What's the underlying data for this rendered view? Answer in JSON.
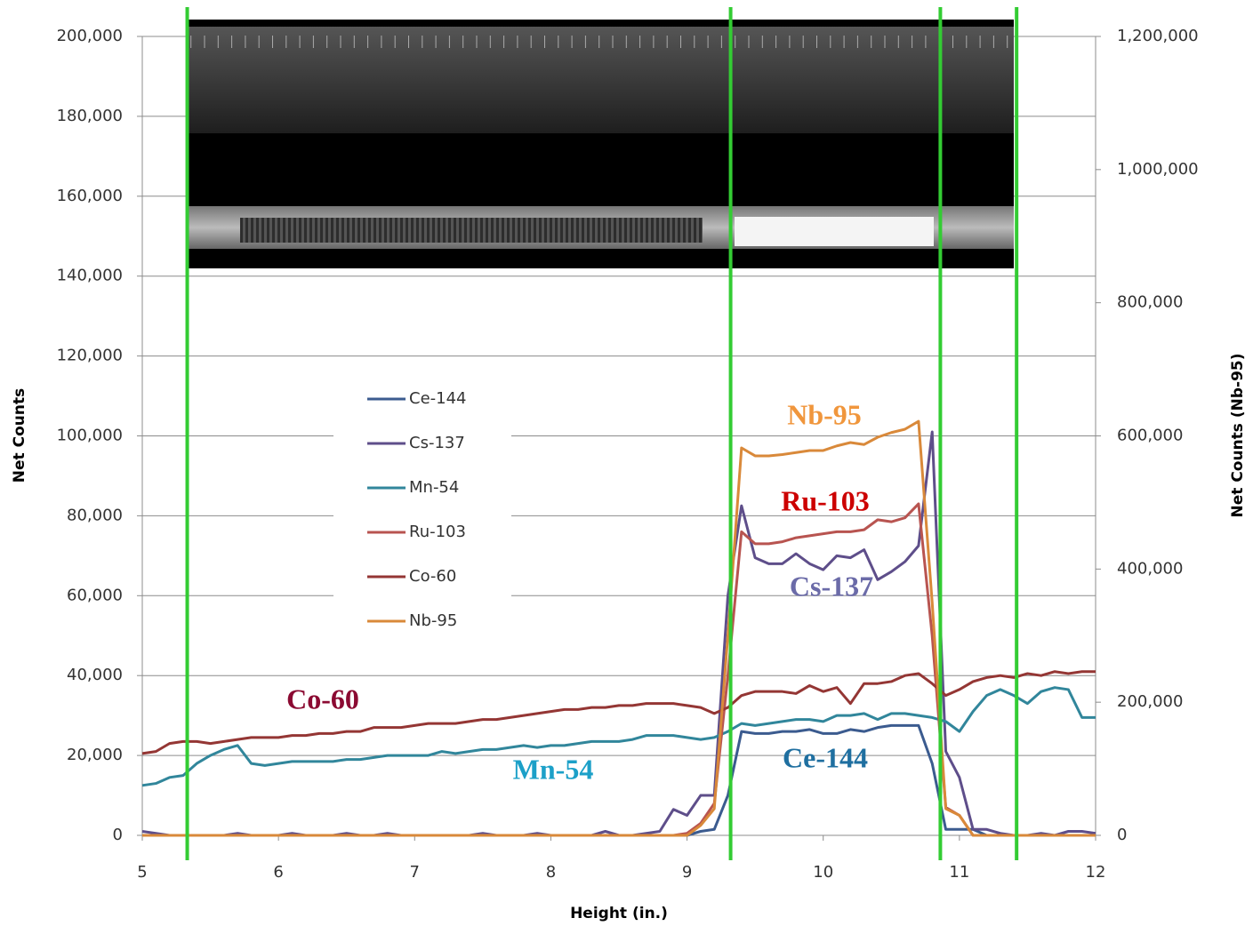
{
  "chart_data": {
    "type": "line",
    "xlabel": "Height (in.)",
    "ylabel": "Net Counts",
    "y2label": "Net Counts (Nb-95)",
    "xlim": [
      5,
      12
    ],
    "xticks": [
      5,
      6,
      7,
      8,
      9,
      10,
      11,
      12
    ],
    "ylim": [
      0,
      200000
    ],
    "yticks": [
      0,
      {
        "value": 20000,
        "label": "20,000"
      },
      {
        "value": 40000,
        "label": "40,000"
      },
      {
        "value": 60000,
        "label": "60,000"
      },
      {
        "value": 80000,
        "label": "80,000"
      },
      {
        "value": 100000,
        "label": "100,000"
      },
      {
        "value": 120000,
        "label": "120,000"
      },
      {
        "value": 140000,
        "label": "140,000"
      },
      {
        "value": 160000,
        "label": "160,000"
      },
      {
        "value": 180000,
        "label": "180,000"
      },
      {
        "value": 200000,
        "label": "200,000"
      }
    ],
    "y2lim": [
      0,
      1200000
    ],
    "y2ticks": [
      0,
      {
        "value": 200000,
        "label": "200,000"
      },
      {
        "value": 400000,
        "label": "400,000"
      },
      {
        "value": 600000,
        "label": "600,000"
      },
      {
        "value": 800000,
        "label": "800,000"
      },
      {
        "value": 1000000,
        "label": "1,000,000"
      },
      {
        "value": 1200000,
        "label": "1,200,000"
      }
    ],
    "grid": true,
    "x": [
      5.0,
      5.1,
      5.2,
      5.3,
      5.4,
      5.5,
      5.6,
      5.7,
      5.8,
      5.9,
      6.0,
      6.1,
      6.2,
      6.3,
      6.4,
      6.5,
      6.6,
      6.7,
      6.8,
      6.9,
      7.0,
      7.1,
      7.2,
      7.3,
      7.4,
      7.5,
      7.6,
      7.7,
      7.8,
      7.9,
      8.0,
      8.1,
      8.2,
      8.3,
      8.4,
      8.5,
      8.6,
      8.7,
      8.8,
      8.9,
      9.0,
      9.1,
      9.2,
      9.3,
      9.4,
      9.5,
      9.6,
      9.7,
      9.8,
      9.9,
      10.0,
      10.1,
      10.2,
      10.3,
      10.4,
      10.5,
      10.6,
      10.7,
      10.8,
      10.9,
      11.0,
      11.1,
      11.2,
      11.3,
      11.4,
      11.5,
      11.6,
      11.7,
      11.8,
      11.9,
      12.0
    ],
    "series": [
      {
        "name": "Ce-144",
        "color": "#3b5b8f",
        "values": [
          0,
          0,
          0,
          0,
          0,
          0,
          0,
          0,
          0,
          0,
          0,
          0,
          0,
          0,
          0,
          0,
          0,
          0,
          0,
          0,
          0,
          0,
          0,
          0,
          0,
          0,
          0,
          0,
          0,
          0,
          0,
          0,
          0,
          0,
          0,
          0,
          0,
          0,
          0,
          0,
          0,
          1000,
          1500,
          10000,
          26000,
          25500,
          25500,
          26000,
          26000,
          26500,
          25500,
          25500,
          26500,
          26000,
          27000,
          27500,
          27500,
          27500,
          18000,
          1500,
          1500,
          1500,
          0,
          0,
          0,
          0,
          0,
          0,
          0,
          0,
          0
        ]
      },
      {
        "name": "Cs-137",
        "color": "#5e4e8a",
        "values": [
          1000,
          500,
          0,
          0,
          0,
          0,
          0,
          500,
          0,
          0,
          0,
          500,
          0,
          0,
          0,
          500,
          0,
          0,
          500,
          0,
          0,
          0,
          0,
          0,
          0,
          500,
          0,
          0,
          0,
          500,
          0,
          0,
          0,
          0,
          1000,
          0,
          0,
          500,
          1000,
          6500,
          5000,
          10000,
          10000,
          60000,
          82500,
          69500,
          68000,
          68000,
          70500,
          68000,
          66500,
          70000,
          69500,
          71500,
          64000,
          66000,
          68500,
          72500,
          101000,
          21000,
          14500,
          1500,
          1500,
          500,
          0,
          0,
          500,
          0,
          1000,
          1000,
          500
        ]
      },
      {
        "name": "Mn-54",
        "color": "#31869b",
        "values": [
          12500,
          13000,
          14500,
          15000,
          18000,
          20000,
          21500,
          22500,
          18000,
          17500,
          18000,
          18500,
          18500,
          18500,
          18500,
          19000,
          19000,
          19500,
          20000,
          20000,
          20000,
          20000,
          21000,
          20500,
          21000,
          21500,
          21500,
          22000,
          22500,
          22000,
          22500,
          22500,
          23000,
          23500,
          23500,
          23500,
          24000,
          25000,
          25000,
          25000,
          24500,
          24000,
          24500,
          26000,
          28000,
          27500,
          28000,
          28500,
          29000,
          29000,
          28500,
          30000,
          30000,
          30500,
          29000,
          30500,
          30500,
          30000,
          29500,
          28500,
          26000,
          31000,
          35000,
          36500,
          35000,
          33000,
          36000,
          37000,
          36500,
          29500,
          29500
        ]
      },
      {
        "name": "Ru-103",
        "color": "#b85450",
        "values": [
          0,
          0,
          0,
          0,
          0,
          0,
          0,
          0,
          0,
          0,
          0,
          0,
          0,
          0,
          0,
          0,
          0,
          0,
          0,
          0,
          0,
          0,
          0,
          0,
          0,
          0,
          0,
          0,
          0,
          0,
          0,
          0,
          0,
          0,
          0,
          0,
          0,
          0,
          0,
          0,
          500,
          3000,
          8000,
          40000,
          76000,
          73000,
          73000,
          73500,
          74500,
          75000,
          75500,
          76000,
          76000,
          76500,
          79000,
          78500,
          79500,
          83000,
          50000,
          7000,
          5000,
          0,
          0,
          0,
          0,
          0,
          0,
          0,
          0,
          0,
          0
        ]
      },
      {
        "name": "Co-60",
        "color": "#943634",
        "values": [
          20500,
          21000,
          23000,
          23500,
          23500,
          23000,
          23500,
          24000,
          24500,
          24500,
          24500,
          25000,
          25000,
          25500,
          25500,
          26000,
          26000,
          27000,
          27000,
          27000,
          27500,
          28000,
          28000,
          28000,
          28500,
          29000,
          29000,
          29500,
          30000,
          30500,
          31000,
          31500,
          31500,
          32000,
          32000,
          32500,
          32500,
          33000,
          33000,
          33000,
          32500,
          32000,
          30500,
          32000,
          35000,
          36000,
          36000,
          36000,
          35500,
          37500,
          36000,
          37000,
          33000,
          38000,
          38000,
          38500,
          40000,
          40500,
          38000,
          35000,
          36500,
          38500,
          39500,
          40000,
          39500,
          40500,
          40000,
          41000,
          40500,
          41000,
          41000
        ]
      },
      {
        "name": "Nb-95",
        "color": "#d9893a",
        "axis": "y2",
        "values": [
          0,
          0,
          0,
          0,
          0,
          0,
          0,
          0,
          0,
          0,
          0,
          0,
          0,
          0,
          0,
          0,
          0,
          0,
          0,
          0,
          0,
          0,
          0,
          0,
          0,
          0,
          0,
          0,
          0,
          0,
          0,
          0,
          0,
          0,
          0,
          0,
          0,
          0,
          0,
          0,
          0,
          15000,
          40000,
          300000,
          582000,
          570000,
          570000,
          572000,
          575000,
          578000,
          578000,
          585000,
          590000,
          587000,
          598000,
          605000,
          610000,
          622000,
          350000,
          40000,
          30000,
          0,
          0,
          0,
          0,
          0,
          0,
          0,
          0,
          0,
          0
        ]
      }
    ],
    "vlines": {
      "color": "#33cc33",
      "x": [
        5.33,
        9.32,
        10.86,
        11.42
      ]
    },
    "annotations": [
      {
        "text": "Nb-95",
        "color": "#f0963c"
      },
      {
        "text": "Ru-103",
        "color": "#cc0000"
      },
      {
        "text": "Cs-137",
        "color": "#6b6ba8"
      },
      {
        "text": "Co-60",
        "color": "#8b0a32"
      },
      {
        "text": "Mn-54",
        "color": "#1ca0c8"
      },
      {
        "text": "Ce-144",
        "color": "#1f6fa0"
      }
    ]
  }
}
